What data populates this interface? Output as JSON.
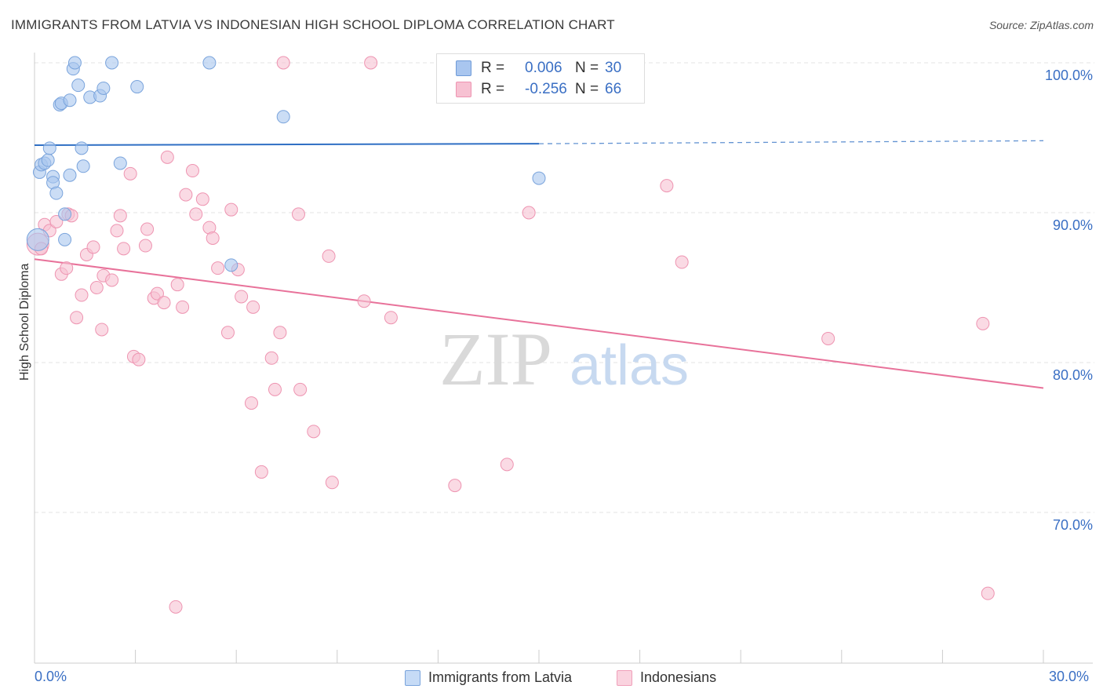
{
  "title": "IMMIGRANTS FROM LATVIA VS INDONESIAN HIGH SCHOOL DIPLOMA CORRELATION CHART",
  "source": "Source: ZipAtlas.com",
  "watermark": {
    "zip": "ZIP",
    "atlas": "atlas"
  },
  "stats": {
    "rows": [
      {
        "r_label": "R =",
        "r_value": "0.006",
        "n_label": "N =",
        "n_value": "30",
        "color": "#a9c6ef",
        "border": "#6f9bd8"
      },
      {
        "r_label": "R =",
        "r_value": "-0.256",
        "n_label": "N =",
        "n_value": "66",
        "color": "#f7c1d2",
        "border": "#ee94b1"
      }
    ]
  },
  "legend": [
    {
      "label": "Immigrants from Latvia",
      "color": "#c6dbf6",
      "border": "#7aa4dc"
    },
    {
      "label": "Indonesians",
      "color": "#fad3df",
      "border": "#f0a0ba"
    }
  ],
  "colors": {
    "blue_fill": "#a9c6ef",
    "blue_stroke": "#7aa4dc",
    "blue_line": "#2f6fc4",
    "pink_fill": "#f7c1d2",
    "pink_stroke": "#ee94b1",
    "pink_line": "#e8729a",
    "grid": "#e3e3e3",
    "axis_text": "#3a6fc4"
  },
  "chart_data": {
    "type": "scatter",
    "title": "IMMIGRANTS FROM LATVIA VS INDONESIAN HIGH SCHOOL DIPLOMA CORRELATION CHART",
    "xlabel": "",
    "ylabel": "High School Diploma",
    "xlim": [
      0,
      30
    ],
    "ylim": [
      60,
      101.5
    ],
    "x_tick_labels": [
      {
        "value": 0,
        "label": "0.0%"
      },
      {
        "value": 30,
        "label": "30.0%"
      }
    ],
    "y_tick_labels": [
      {
        "value": 100,
        "label": "100.0%"
      },
      {
        "value": 90,
        "label": "90.0%"
      },
      {
        "value": 80,
        "label": "80.0%"
      },
      {
        "value": 70,
        "label": "70.0%"
      }
    ],
    "grid": true,
    "legend_position": "bottom-center",
    "series": [
      {
        "name": "Immigrants from Latvia",
        "color": "#a9c6ef",
        "points": [
          [
            0.15,
            92.7
          ],
          [
            0.2,
            93.2
          ],
          [
            0.3,
            93.3
          ],
          [
            0.4,
            93.5
          ],
          [
            0.45,
            94.3
          ],
          [
            0.55,
            92.4
          ],
          [
            0.55,
            92.0
          ],
          [
            0.65,
            91.3
          ],
          [
            0.75,
            97.2
          ],
          [
            0.8,
            97.3
          ],
          [
            0.9,
            89.9
          ],
          [
            0.9,
            88.2
          ],
          [
            1.05,
            97.5
          ],
          [
            1.05,
            92.5
          ],
          [
            1.15,
            99.6
          ],
          [
            1.2,
            100.0
          ],
          [
            1.3,
            98.5
          ],
          [
            1.4,
            94.3
          ],
          [
            1.45,
            93.1
          ],
          [
            1.65,
            97.7
          ],
          [
            1.95,
            97.8
          ],
          [
            2.05,
            98.3
          ],
          [
            2.3,
            100.0
          ],
          [
            2.55,
            93.3
          ],
          [
            3.05,
            98.4
          ],
          [
            5.2,
            100.0
          ],
          [
            5.85,
            86.5
          ],
          [
            7.4,
            96.4
          ],
          [
            15.0,
            92.3
          ],
          [
            0.1,
            88.2
          ]
        ]
      },
      {
        "name": "Indonesians",
        "color": "#f7c1d2",
        "points": [
          [
            0.1,
            87.9
          ],
          [
            0.2,
            87.6
          ],
          [
            0.3,
            89.2
          ],
          [
            0.45,
            88.8
          ],
          [
            0.65,
            89.4
          ],
          [
            0.8,
            85.9
          ],
          [
            0.95,
            86.3
          ],
          [
            1.0,
            89.9
          ],
          [
            1.1,
            89.8
          ],
          [
            1.25,
            83.0
          ],
          [
            1.4,
            84.5
          ],
          [
            1.55,
            87.2
          ],
          [
            1.75,
            87.7
          ],
          [
            1.85,
            85.0
          ],
          [
            2.0,
            82.2
          ],
          [
            2.05,
            85.8
          ],
          [
            2.3,
            85.5
          ],
          [
            2.45,
            88.8
          ],
          [
            2.55,
            89.8
          ],
          [
            2.65,
            87.6
          ],
          [
            2.85,
            92.6
          ],
          [
            2.95,
            80.4
          ],
          [
            3.1,
            80.2
          ],
          [
            3.3,
            87.8
          ],
          [
            3.35,
            88.9
          ],
          [
            3.55,
            84.3
          ],
          [
            3.65,
            84.6
          ],
          [
            3.85,
            84.0
          ],
          [
            3.95,
            93.7
          ],
          [
            4.25,
            85.2
          ],
          [
            4.4,
            83.7
          ],
          [
            4.5,
            91.2
          ],
          [
            4.7,
            92.8
          ],
          [
            4.8,
            89.9
          ],
          [
            5.0,
            90.9
          ],
          [
            5.2,
            89.0
          ],
          [
            5.3,
            88.3
          ],
          [
            5.45,
            86.3
          ],
          [
            5.75,
            82.0
          ],
          [
            5.85,
            90.2
          ],
          [
            6.05,
            86.2
          ],
          [
            6.15,
            84.4
          ],
          [
            6.45,
            77.3
          ],
          [
            6.5,
            83.7
          ],
          [
            6.75,
            72.7
          ],
          [
            7.05,
            80.3
          ],
          [
            7.15,
            78.2
          ],
          [
            7.3,
            82.0
          ],
          [
            7.4,
            100.0
          ],
          [
            7.85,
            89.9
          ],
          [
            7.9,
            78.2
          ],
          [
            8.3,
            75.4
          ],
          [
            8.75,
            87.1
          ],
          [
            8.85,
            72.0
          ],
          [
            9.8,
            84.1
          ],
          [
            10.0,
            100.0
          ],
          [
            10.6,
            83.0
          ],
          [
            12.5,
            71.8
          ],
          [
            14.05,
            73.2
          ],
          [
            14.7,
            90.0
          ],
          [
            18.8,
            91.8
          ],
          [
            19.25,
            86.7
          ],
          [
            23.6,
            81.6
          ],
          [
            28.2,
            82.6
          ],
          [
            28.35,
            64.6
          ],
          [
            4.2,
            63.7
          ]
        ]
      }
    ],
    "trend_lines": [
      {
        "series": "Immigrants from Latvia",
        "from": [
          0,
          94.5
        ],
        "to": [
          15.0,
          94.6
        ],
        "dashed_to": [
          30,
          94.8
        ]
      },
      {
        "series": "Indonesians",
        "from": [
          0,
          86.9
        ],
        "to": [
          30,
          78.3
        ]
      }
    ]
  }
}
